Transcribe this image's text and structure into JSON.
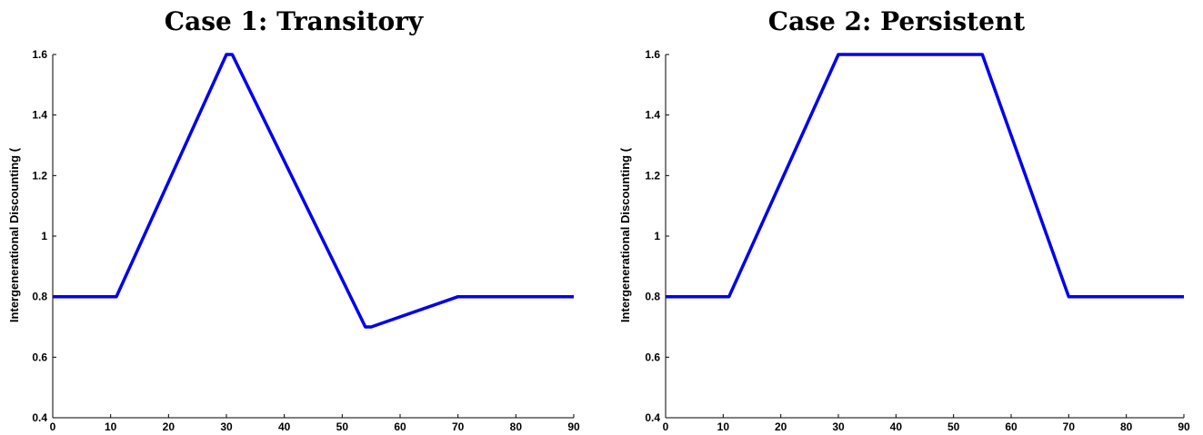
{
  "chart_data": [
    {
      "type": "line",
      "title": "Case 1: Transitory",
      "xlabel": "",
      "ylabel": "Intergenerational Discounting (",
      "xlim": [
        0,
        90
      ],
      "ylim": [
        0.4,
        1.6
      ],
      "x_ticks": [
        0,
        10,
        20,
        30,
        40,
        50,
        60,
        70,
        80,
        90
      ],
      "y_ticks": [
        0.4,
        0.6,
        0.8,
        1,
        1.2,
        1.4,
        1.6
      ],
      "grid": false,
      "colors": {
        "line": "#0000ee"
      },
      "series": [
        {
          "x": [
            0,
            11,
            30,
            31,
            54,
            55,
            70,
            90
          ],
          "y": [
            0.8,
            0.8,
            1.6,
            1.6,
            0.7,
            0.7,
            0.8,
            0.8
          ]
        }
      ]
    },
    {
      "type": "line",
      "title": "Case 2: Persistent",
      "xlabel": "",
      "ylabel": "Intergenerational Discounting (",
      "xlim": [
        0,
        90
      ],
      "ylim": [
        0.4,
        1.6
      ],
      "x_ticks": [
        0,
        10,
        20,
        30,
        40,
        50,
        60,
        70,
        80,
        90
      ],
      "y_ticks": [
        0.4,
        0.6,
        0.8,
        1,
        1.2,
        1.4,
        1.6
      ],
      "grid": false,
      "colors": {
        "line": "#0000ee"
      },
      "series": [
        {
          "x": [
            0,
            11,
            30,
            55,
            70,
            90
          ],
          "y": [
            0.8,
            0.8,
            1.6,
            1.6,
            0.8,
            0.8
          ]
        }
      ]
    }
  ]
}
